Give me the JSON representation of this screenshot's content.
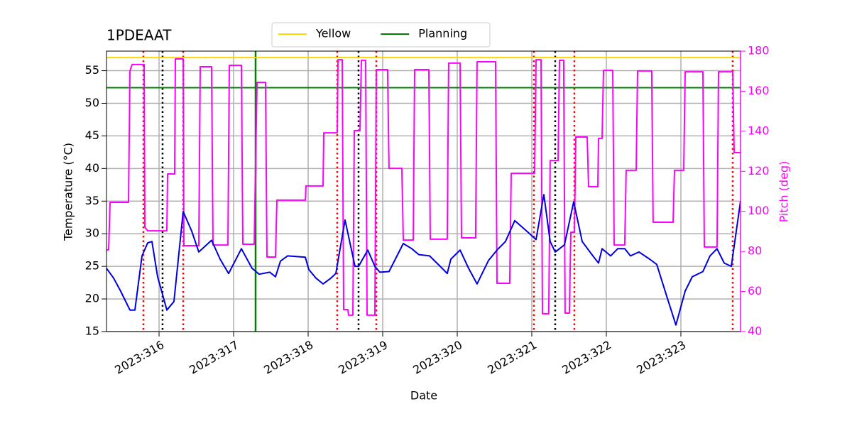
{
  "chart_data": {
    "type": "line",
    "title": "1PDEAAT",
    "xlabel": "Date",
    "ylabel": "Temperature (°C)",
    "y2label": "Pitch (deg)",
    "xlim": [
      315.295,
      323.8
    ],
    "ylim": [
      15,
      58
    ],
    "y2lim": [
      40,
      180
    ],
    "grid": true,
    "legend": "top",
    "xticks": [
      {
        "value": 316,
        "label": "2023:316"
      },
      {
        "value": 317,
        "label": "2023:317"
      },
      {
        "value": 318,
        "label": "2023:318"
      },
      {
        "value": 319,
        "label": "2023:319"
      },
      {
        "value": 320,
        "label": "2023:320"
      },
      {
        "value": 321,
        "label": "2023:321"
      },
      {
        "value": 322,
        "label": "2023:322"
      },
      {
        "value": 323,
        "label": "2023:323"
      }
    ],
    "yticks": [
      15,
      20,
      25,
      30,
      35,
      40,
      45,
      50,
      55
    ],
    "y2ticks": [
      40,
      60,
      80,
      100,
      120,
      140,
      160,
      180
    ],
    "series": [
      {
        "color": "#0000dd",
        "x": [
          315.295,
          315.39,
          315.485,
          315.609,
          315.676,
          315.771,
          315.847,
          315.905,
          315.981,
          316.105,
          316.2,
          316.324,
          316.438,
          316.533,
          316.705,
          316.819,
          316.933,
          317.105,
          317.247,
          317.343,
          317.485,
          317.562,
          317.628,
          317.724,
          317.962,
          318.009,
          318.105,
          318.2,
          318.295,
          318.371,
          318.495,
          318.628,
          318.676,
          318.8,
          318.895,
          318.962,
          319.085,
          319.276,
          319.39,
          319.485,
          319.628,
          319.771,
          319.866,
          319.914,
          320.038,
          320.152,
          320.266,
          320.419,
          320.533,
          320.647,
          320.771,
          320.962,
          321.057,
          321.162,
          321.247,
          321.314,
          321.438,
          321.562,
          321.676,
          321.819,
          321.895,
          321.943,
          322.057,
          322.152,
          322.247,
          322.324,
          322.438,
          322.581,
          322.676,
          322.819,
          322.933,
          323.057,
          323.152,
          323.295,
          323.39,
          323.485,
          323.581,
          323.676,
          323.8
        ],
        "values": [
          24.7,
          23.2,
          21.2,
          18.3,
          18.3,
          26.6,
          28.6,
          28.8,
          23.4,
          18.3,
          19.6,
          33.4,
          30.4,
          27.2,
          29.0,
          26.1,
          23.9,
          27.7,
          24.7,
          23.8,
          24.1,
          23.4,
          25.8,
          26.6,
          26.4,
          24.5,
          23.2,
          22.3,
          23.1,
          23.9,
          32.1,
          25.0,
          25.0,
          27.5,
          25.0,
          24.1,
          24.2,
          28.5,
          27.7,
          26.8,
          26.6,
          25.0,
          23.9,
          26.1,
          27.5,
          24.7,
          22.3,
          25.9,
          27.5,
          28.8,
          32.0,
          30.1,
          29.1,
          36.0,
          28.8,
          27.2,
          28.3,
          34.9,
          28.8,
          26.6,
          25.5,
          27.7,
          26.6,
          27.7,
          27.7,
          26.6,
          27.2,
          26.1,
          25.3,
          20.1,
          16.0,
          21.2,
          23.4,
          24.2,
          26.6,
          27.7,
          25.5,
          25.0,
          35.0
        ]
      },
      {
        "color": "#ff00ff",
        "axis": "y2",
        "x": [
          315.295,
          315.324,
          315.343,
          315.59,
          315.609,
          315.638,
          315.8,
          315.809,
          315.847,
          316.105,
          316.114,
          316.209,
          316.219,
          316.324,
          316.333,
          316.533,
          316.552,
          316.705,
          316.724,
          316.924,
          316.943,
          317.105,
          317.124,
          317.276,
          317.314,
          317.428,
          317.447,
          317.562,
          317.581,
          317.962,
          317.971,
          318.2,
          318.209,
          318.39,
          318.4,
          318.457,
          318.476,
          318.533,
          318.543,
          318.6,
          318.619,
          318.695,
          318.714,
          318.771,
          318.79,
          318.895,
          318.914,
          319.066,
          319.085,
          319.257,
          319.276,
          319.409,
          319.428,
          319.619,
          319.638,
          319.866,
          319.885,
          320.038,
          320.057,
          320.247,
          320.266,
          320.514,
          320.533,
          320.704,
          320.724,
          321.038,
          321.057,
          321.124,
          321.143,
          321.228,
          321.247,
          321.352,
          321.371,
          321.428,
          321.447,
          321.504,
          321.524,
          321.571,
          321.59,
          321.743,
          321.762,
          321.886,
          321.895,
          321.943,
          321.962,
          322.086,
          322.105,
          322.247,
          322.266,
          322.4,
          322.419,
          322.609,
          322.628,
          322.895,
          322.914,
          323.038,
          323.057,
          323.295,
          323.314,
          323.485,
          323.505,
          323.695,
          323.714,
          323.8
        ],
        "values": [
          80.8,
          80.8,
          104.5,
          104.5,
          170.1,
          173.3,
          173.3,
          92.1,
          90.3,
          90.3,
          118.7,
          118.7,
          176.1,
          176.1,
          82.9,
          82.9,
          172.2,
          172.2,
          83.2,
          83.2,
          172.9,
          172.9,
          83.6,
          83.6,
          164.4,
          164.4,
          77.2,
          77.2,
          105.6,
          105.6,
          112.7,
          112.7,
          139.2,
          139.2,
          175.7,
          175.7,
          51.0,
          51.0,
          48.2,
          48.2,
          140.3,
          140.3,
          175.4,
          175.4,
          48.2,
          48.2,
          170.8,
          170.8,
          121.5,
          121.5,
          85.7,
          85.7,
          170.8,
          170.8,
          86.1,
          86.1,
          174.0,
          174.0,
          86.8,
          86.8,
          174.7,
          174.7,
          64.1,
          64.1,
          119.0,
          119.0,
          175.7,
          175.7,
          48.9,
          48.9,
          125.4,
          125.4,
          175.4,
          175.4,
          49.2,
          49.2,
          89.6,
          89.6,
          137.1,
          137.1,
          112.3,
          112.3,
          136.4,
          136.4,
          170.4,
          170.4,
          83.2,
          83.2,
          120.5,
          120.5,
          170.1,
          170.1,
          94.6,
          94.6,
          120.5,
          120.5,
          169.7,
          169.7,
          82.2,
          82.2,
          169.7,
          169.7,
          129.3,
          129.3
        ]
      }
    ],
    "hlines": [
      {
        "name": "Yellow",
        "color": "#ffd700",
        "value": 57
      },
      {
        "name": "Planning",
        "color": "#008000",
        "value": 52.4
      }
    ],
    "vlines": [
      {
        "color": "#008000",
        "style": "solid",
        "value": 317.295
      },
      {
        "color": "#ff0000",
        "style": "dotted",
        "value": 315.79
      },
      {
        "color": "#ff0000",
        "style": "dotted",
        "value": 316.324
      },
      {
        "color": "#ff0000",
        "style": "dotted",
        "value": 318.39
      },
      {
        "color": "#ff0000",
        "style": "dotted",
        "value": 318.914
      },
      {
        "color": "#ff0000",
        "style": "dotted",
        "value": 321.028
      },
      {
        "color": "#ff0000",
        "style": "dotted",
        "value": 321.571
      },
      {
        "color": "#ff0000",
        "style": "dotted",
        "value": 323.695
      },
      {
        "color": "#000000",
        "style": "dotted",
        "value": 316.047
      },
      {
        "color": "#000000",
        "style": "dotted",
        "value": 318.676
      },
      {
        "color": "#000000",
        "style": "dotted",
        "value": 321.314
      }
    ]
  }
}
